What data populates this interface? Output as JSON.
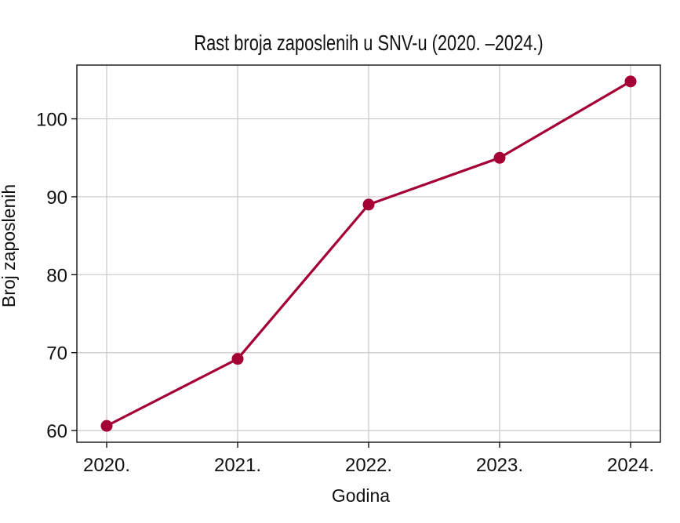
{
  "chart_data": {
    "type": "line",
    "title": "Rast broja zaposlenih u SNV-u (2020. –2024.)",
    "xlabel": "Godina",
    "ylabel": "Broj zaposlenih",
    "categories": [
      "2020.",
      "2021.",
      "2022.",
      "2023.",
      "2024."
    ],
    "series": [
      {
        "values": [
          60.6,
          69.2,
          89.0,
          95.0,
          104.8
        ],
        "color": "#a50034"
      }
    ],
    "yticks": [
      60,
      70,
      80,
      90,
      100
    ],
    "ylim": [
      58.5,
      106.9
    ],
    "grid": true,
    "legend": "none"
  }
}
